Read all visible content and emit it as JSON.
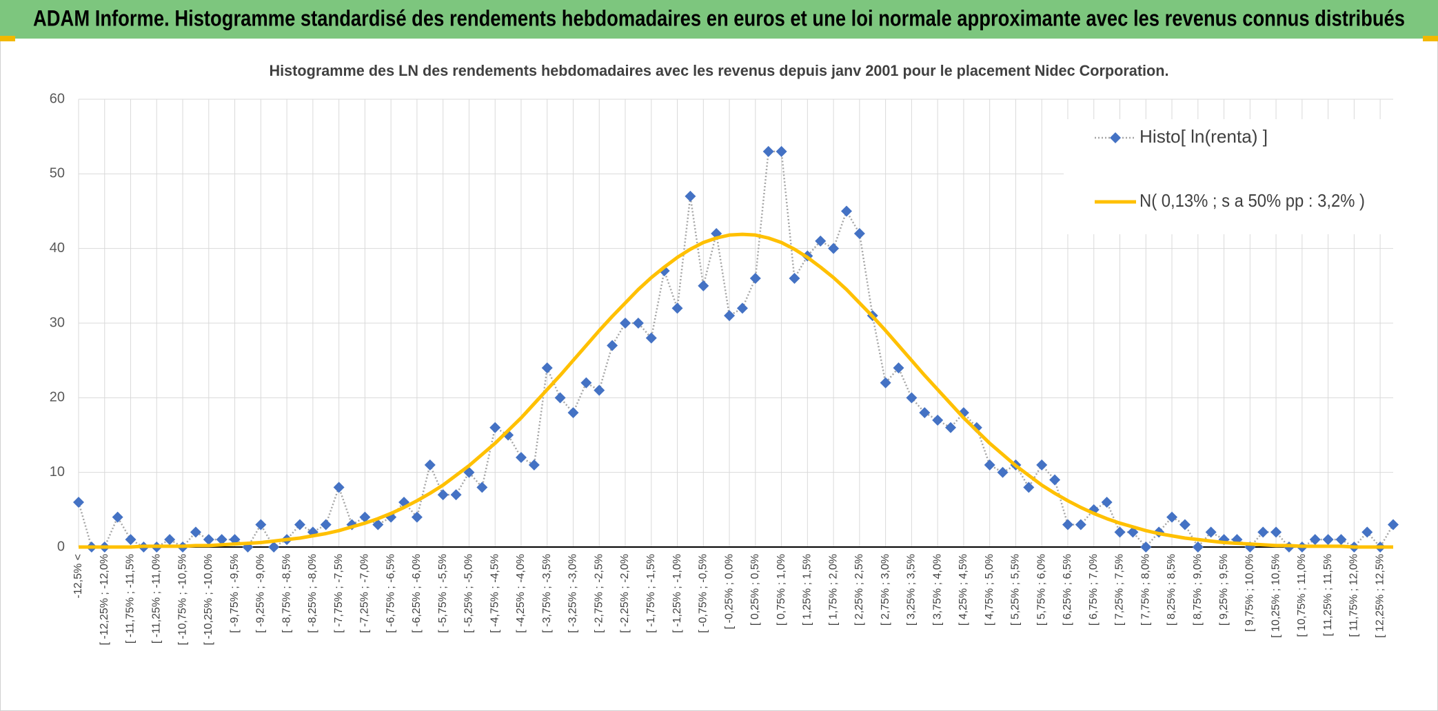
{
  "chart_data": {
    "type": "line",
    "header": "ADAM Informe. Histogramme standardisé des rendements hebdomadaires en euros et une loi normale approximante avec les revenus connus distribués",
    "title": "Histogramme des LN des rendements hebdomadaires avec les revenus depuis janv 2001 pour le placement Nidec Corporation.",
    "categories": [
      "-12,5% <",
      null,
      "[ -12,25% ; -12,0%",
      null,
      "[ -11,75% ; -11,5%",
      null,
      "[ -11,25% ; -11,0%",
      null,
      "[ -10,75% ; -10,5%",
      null,
      "[ -10,25% ; -10,0%",
      null,
      "[ -9,75% ; -9,5%",
      null,
      "[ -9,25% ; -9,0%",
      null,
      "[ -8,75% ; -8,5%",
      null,
      "[ -8,25% ; -8,0%",
      null,
      "[ -7,75% ; -7,5%",
      null,
      "[ -7,25% ; -7,0%",
      null,
      "[ -6,75% ; -6,5%",
      null,
      "[ -6,25% ; -6,0%",
      null,
      "[ -5,75% ; -5,5%",
      null,
      "[ -5,25% ; -5,0%",
      null,
      "[ -4,75% ; -4,5%",
      null,
      "[ -4,25% ; -4,0%",
      null,
      "[ -3,75% ; -3,5%",
      null,
      "[ -3,25% ; -3,0%",
      null,
      "[ -2,75% ; -2,5%",
      null,
      "[ -2,25% ; -2,0%",
      null,
      "[ -1,75% ; -1,5%",
      null,
      "[ -1,25% ; -1,0%",
      null,
      "[ -0,75% ; -0,5%",
      null,
      "[ -0,25% ; 0,0%",
      null,
      "[ 0,25% ; 0,5%",
      null,
      "[ 0,75% ; 1,0%",
      null,
      "[ 1,25% ; 1,5%",
      null,
      "[ 1,75% ; 2,0%",
      null,
      "[ 2,25% ; 2,5%",
      null,
      "[ 2,75% ; 3,0%",
      null,
      "[ 3,25% ; 3,5%",
      null,
      "[ 3,75% ; 4,0%",
      null,
      "[ 4,25% ; 4,5%",
      null,
      "[ 4,75% ; 5,0%",
      null,
      "[ 5,25% ; 5,5%",
      null,
      "[ 5,75% ; 6,0%",
      null,
      "[ 6,25% ; 6,5%",
      null,
      "[ 6,75% ; 7,0%",
      null,
      "[ 7,25% ; 7,5%",
      null,
      "[ 7,75% ; 8,0%",
      null,
      "[ 8,25% ; 8,5%",
      null,
      "[ 8,75% ; 9,0%",
      null,
      "[ 9,25% ; 9,5%",
      null,
      "[ 9,75% ; 10,0%",
      null,
      "[ 10,25% ; 10,5%",
      null,
      "[ 10,75% ; 11,0%",
      null,
      "[ 11,25% ; 11,5%",
      null,
      "[ 11,75% ; 12,0%",
      null,
      "[ 12,25% ; 12,5%",
      null
    ],
    "series": [
      {
        "name": "Histo[ ln(renta) ]",
        "color": "#4472c4",
        "line_color": "#a5a5a5",
        "marker": "diamond",
        "values": [
          6,
          0,
          0,
          4,
          1,
          0,
          0,
          1,
          0,
          2,
          1,
          1,
          1,
          0,
          3,
          0,
          1,
          3,
          2,
          3,
          8,
          3,
          4,
          3,
          4,
          6,
          4,
          11,
          7,
          7,
          10,
          8,
          16,
          15,
          12,
          11,
          24,
          20,
          18,
          22,
          21,
          27,
          30,
          30,
          28,
          37,
          32,
          47,
          35,
          42,
          31,
          32,
          36,
          53,
          53,
          36,
          39,
          41,
          40,
          45,
          42,
          31,
          22,
          24,
          20,
          18,
          17,
          16,
          18,
          16,
          11,
          10,
          11,
          8,
          11,
          9,
          3,
          3,
          5,
          6,
          2,
          2,
          0,
          2,
          4,
          3,
          0,
          2,
          1,
          1,
          0,
          2,
          2,
          0,
          0,
          1,
          1,
          1,
          0,
          2,
          0,
          3
        ]
      },
      {
        "name": "N( 0,13% ; s a 50% pp : 3,2% )",
        "color": "#ffc000",
        "values": [
          0.0,
          0.0,
          0.0,
          0.0,
          0.0,
          0.1,
          0.1,
          0.1,
          0.1,
          0.2,
          0.2,
          0.3,
          0.4,
          0.5,
          0.6,
          0.8,
          1.0,
          1.2,
          1.5,
          1.8,
          2.2,
          2.7,
          3.2,
          3.8,
          4.5,
          5.3,
          6.2,
          7.2,
          8.3,
          9.6,
          10.9,
          12.4,
          13.9,
          15.6,
          17.3,
          19.2,
          21.1,
          23.0,
          25.0,
          27.0,
          29.0,
          30.9,
          32.7,
          34.5,
          36.1,
          37.5,
          38.8,
          39.9,
          40.8,
          41.4,
          41.8,
          41.9,
          41.8,
          41.4,
          40.8,
          39.9,
          38.8,
          37.5,
          36.1,
          34.5,
          32.7,
          30.9,
          29.0,
          27.0,
          25.0,
          23.0,
          21.1,
          19.2,
          17.3,
          15.6,
          13.9,
          12.4,
          10.9,
          9.6,
          8.3,
          7.2,
          6.2,
          5.3,
          4.5,
          3.8,
          3.2,
          2.7,
          2.2,
          1.8,
          1.5,
          1.2,
          1.0,
          0.8,
          0.6,
          0.5,
          0.4,
          0.3,
          0.2,
          0.2,
          0.1,
          0.1,
          0.1,
          0.1,
          0.0,
          0.0,
          0.0,
          0.0
        ]
      }
    ],
    "ylim": [
      0,
      60
    ],
    "yticks": [
      0,
      10,
      20,
      30,
      40,
      50,
      60
    ],
    "grid": true,
    "legend": "upper right"
  }
}
